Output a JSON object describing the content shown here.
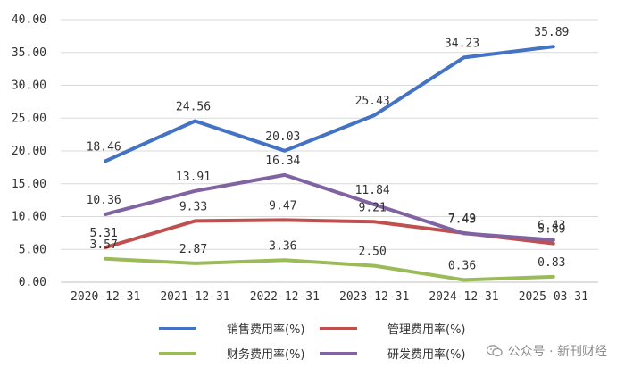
{
  "chart_data": {
    "type": "line",
    "categories": [
      "2020-12-31",
      "2021-12-31",
      "2022-12-31",
      "2023-12-31",
      "2024-12-31",
      "2025-03-31"
    ],
    "ylim": [
      0,
      40
    ],
    "yticks": [
      "0.00",
      "5.00",
      "10.00",
      "15.00",
      "20.00",
      "25.00",
      "30.00",
      "35.00",
      "40.00"
    ],
    "grid": true,
    "legend_position": "bottom",
    "series": [
      {
        "name": "销售费用率(%)",
        "color": "#4472C4",
        "values": [
          18.46,
          24.56,
          20.03,
          25.43,
          34.23,
          35.89
        ],
        "labels": [
          "18.46",
          "24.56",
          "20.03",
          "25.43",
          "34.23",
          "35.89"
        ]
      },
      {
        "name": "管理费用率(%)",
        "color": "#C0504D",
        "values": [
          5.31,
          9.33,
          9.47,
          9.21,
          7.49,
          5.89
        ],
        "labels": [
          "5.31",
          "9.33",
          "9.47",
          "9.21",
          "7.49",
          "5.89"
        ]
      },
      {
        "name": "财务费用率(%)",
        "color": "#9BBB59",
        "values": [
          3.57,
          2.87,
          3.36,
          2.5,
          0.36,
          0.83
        ],
        "labels": [
          "3.57",
          "2.87",
          "3.36",
          "2.50",
          "0.36",
          "0.83"
        ]
      },
      {
        "name": "研发费用率(%)",
        "color": "#8064A2",
        "values": [
          10.36,
          13.91,
          16.34,
          11.84,
          7.43,
          6.43
        ],
        "labels": [
          "10.36",
          "13.91",
          "16.34",
          "11.84",
          "7.43",
          "6.43"
        ]
      }
    ]
  },
  "watermark": {
    "text": "公众号 · 新刊财经",
    "icon": "wechat-icon"
  }
}
